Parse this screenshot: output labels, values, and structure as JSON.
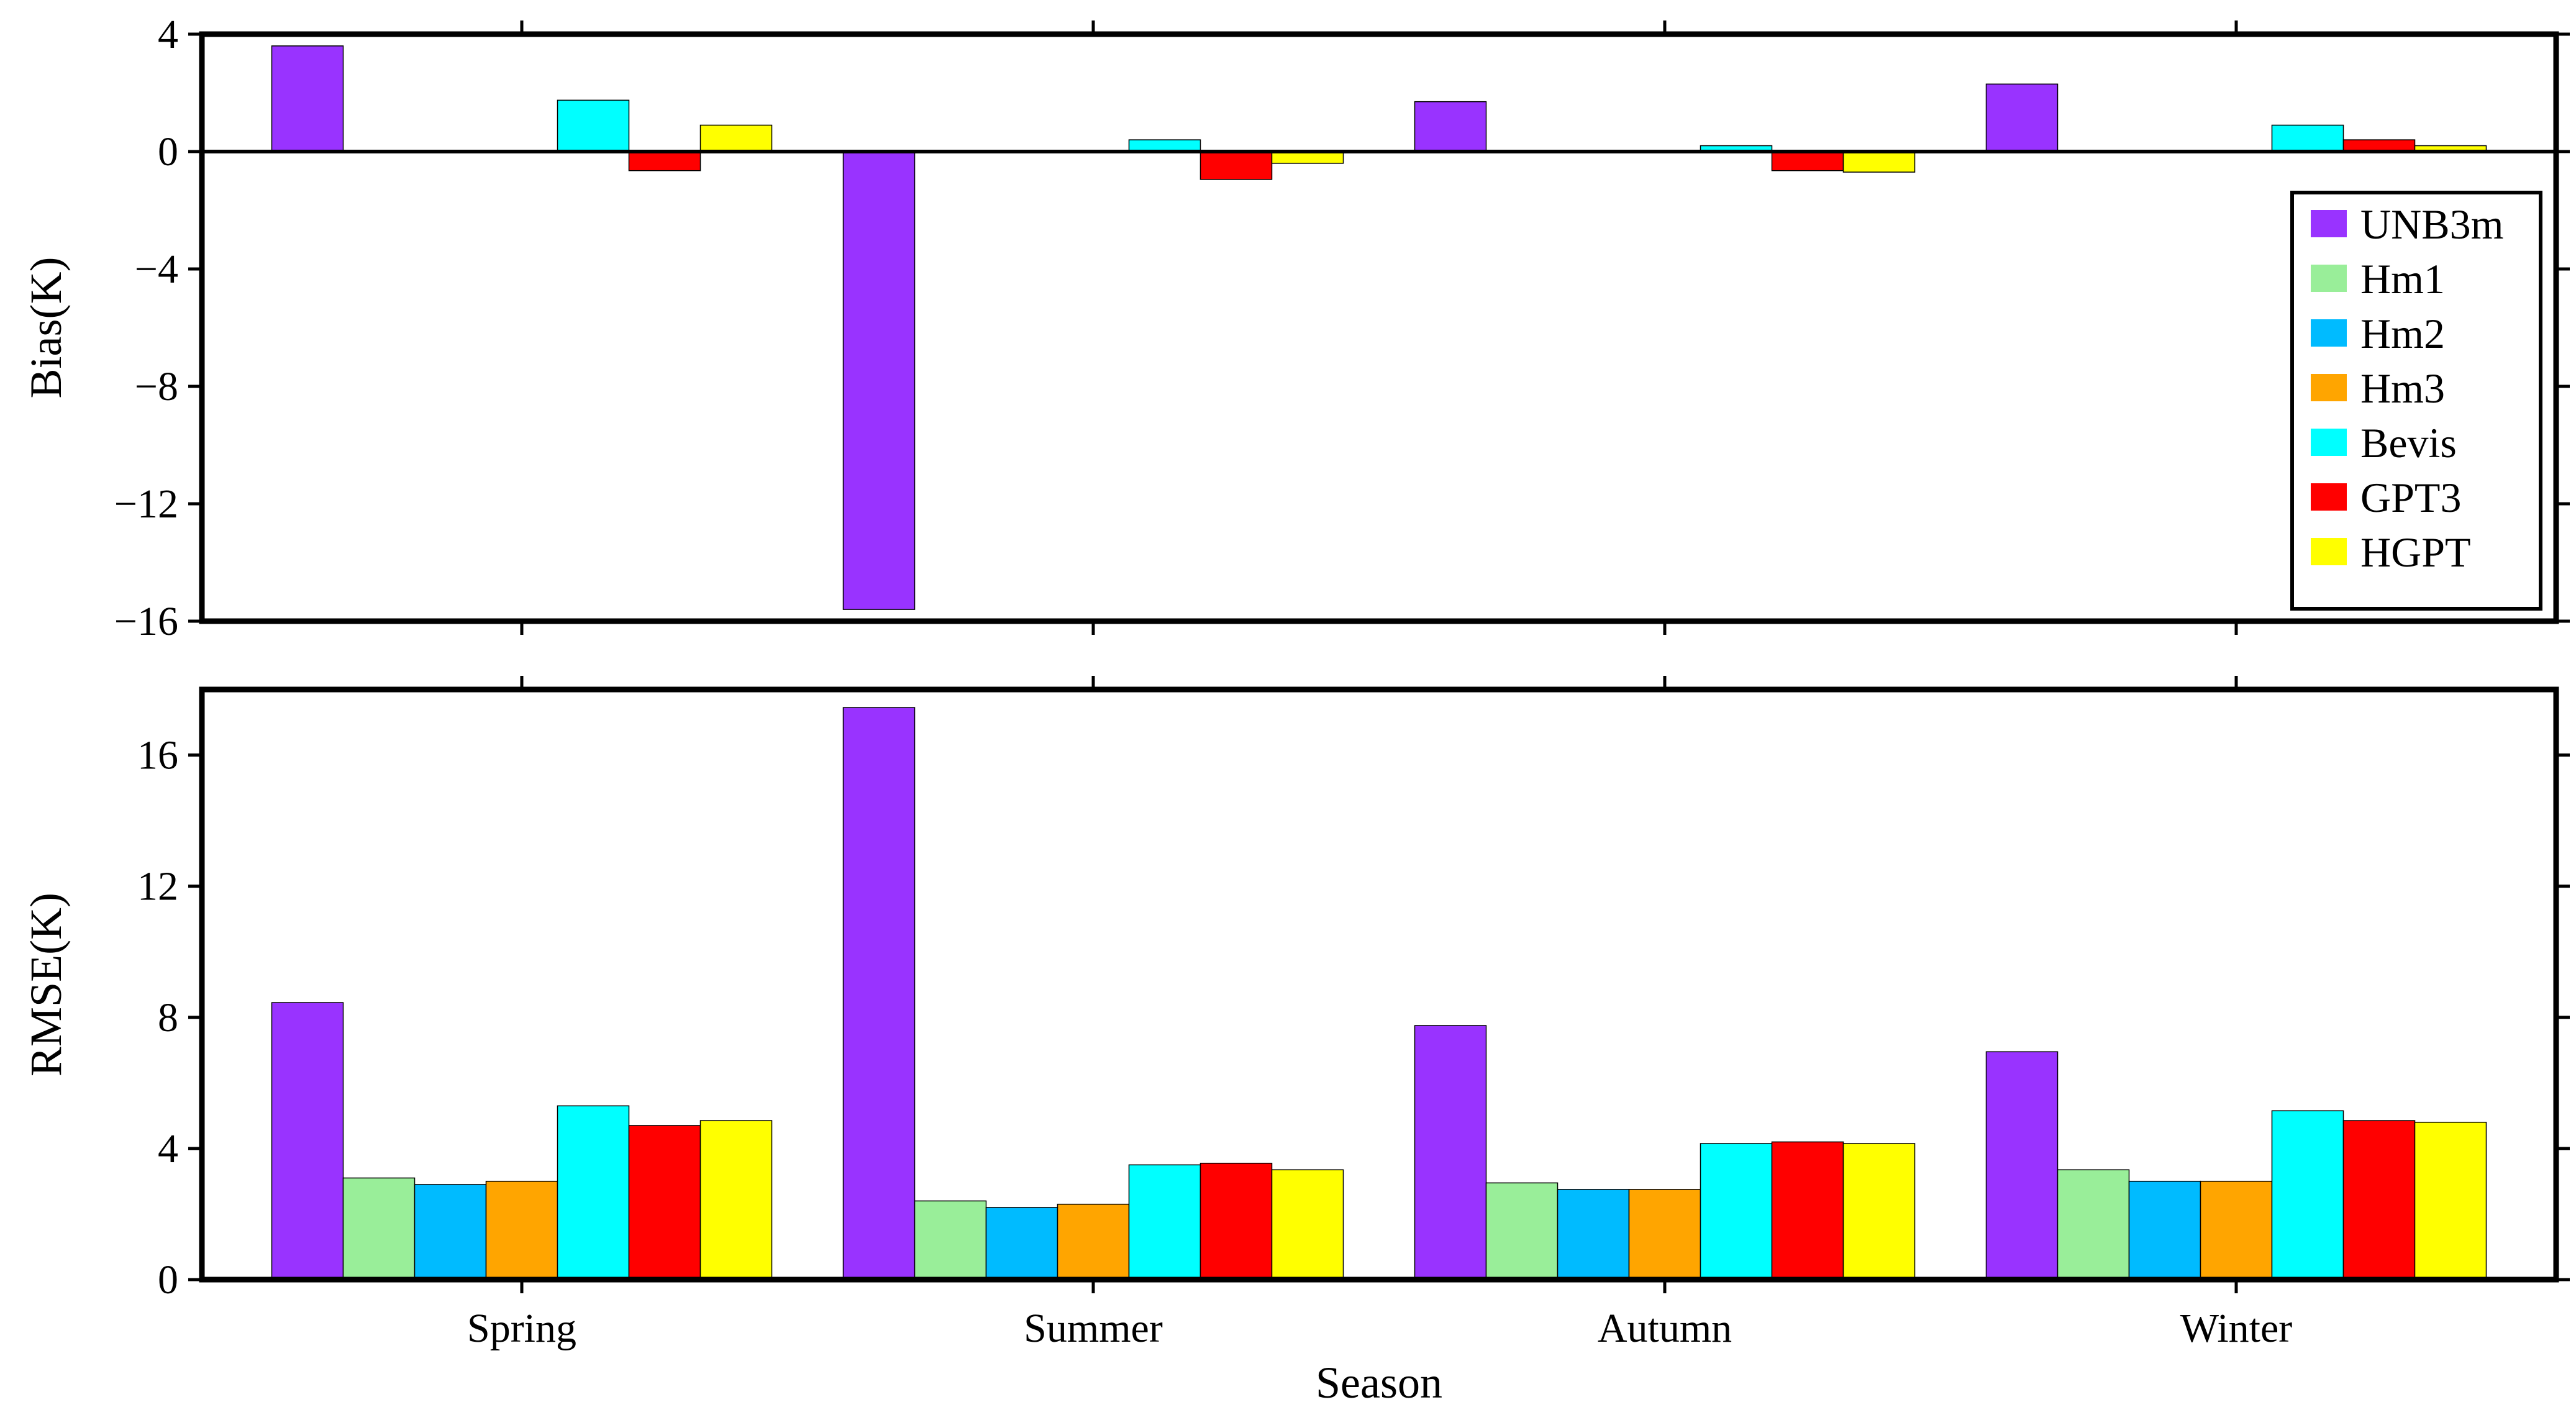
{
  "chart_data": [
    {
      "type": "bar",
      "id": "bias",
      "ylabel": "Bias(K)",
      "xlabel": "",
      "ylim": [
        -16,
        4
      ],
      "yticks": [
        4,
        0,
        -4,
        -8,
        -12,
        -16
      ],
      "ytick_labels": [
        "4",
        "0",
        "−4",
        "−8",
        "−12",
        "−16"
      ],
      "categories": [
        "Spring",
        "Summer",
        "Autumn",
        "Winter"
      ],
      "show_x_tick_labels": false,
      "zero_line": true,
      "legend": {
        "placement": "right",
        "show": true
      },
      "series": [
        {
          "name": "UNB3m",
          "values": [
            3.6,
            -15.6,
            1.7,
            2.3
          ]
        },
        {
          "name": "Hm1",
          "values": [
            0.0,
            0.0,
            0.0,
            0.0
          ]
        },
        {
          "name": "Hm2",
          "values": [
            0.05,
            0.0,
            -0.05,
            0.0
          ]
        },
        {
          "name": "Hm3",
          "values": [
            0.0,
            0.0,
            0.05,
            0.0
          ]
        },
        {
          "name": "Bevis",
          "values": [
            1.75,
            0.4,
            0.2,
            0.9
          ]
        },
        {
          "name": "GPT3",
          "values": [
            -0.65,
            -0.95,
            -0.65,
            0.4
          ]
        },
        {
          "name": "HGPT",
          "values": [
            0.9,
            -0.4,
            -0.7,
            0.2
          ]
        }
      ]
    },
    {
      "type": "bar",
      "id": "rmse",
      "ylabel": "RMSE(K)",
      "xlabel": "Season",
      "ylim": [
        0,
        18
      ],
      "yticks": [
        0,
        4,
        8,
        12,
        16
      ],
      "ytick_labels": [
        "0",
        "4",
        "8",
        "12",
        "16"
      ],
      "categories": [
        "Spring",
        "Summer",
        "Autumn",
        "Winter"
      ],
      "show_x_tick_labels": true,
      "zero_line": false,
      "legend": {
        "show": false
      },
      "series": [
        {
          "name": "UNB3m",
          "values": [
            8.45,
            17.45,
            7.75,
            6.95
          ]
        },
        {
          "name": "Hm1",
          "values": [
            3.1,
            2.4,
            2.95,
            3.35
          ]
        },
        {
          "name": "Hm2",
          "values": [
            2.9,
            2.2,
            2.75,
            3.0
          ]
        },
        {
          "name": "Hm3",
          "values": [
            3.0,
            2.3,
            2.75,
            3.0
          ]
        },
        {
          "name": "Bevis",
          "values": [
            5.3,
            3.5,
            4.15,
            5.15
          ]
        },
        {
          "name": "GPT3",
          "values": [
            4.7,
            3.55,
            4.2,
            4.85
          ]
        },
        {
          "name": "HGPT",
          "values": [
            4.85,
            3.35,
            4.15,
            4.8
          ]
        }
      ]
    }
  ],
  "series_colors": {
    "UNB3m": "#9933ff",
    "Hm1": "#99ee99",
    "Hm2": "#00bbff",
    "Hm3": "#ffa500",
    "Bevis": "#00ffff",
    "GPT3": "#ff0000",
    "HGPT": "#ffff00"
  }
}
